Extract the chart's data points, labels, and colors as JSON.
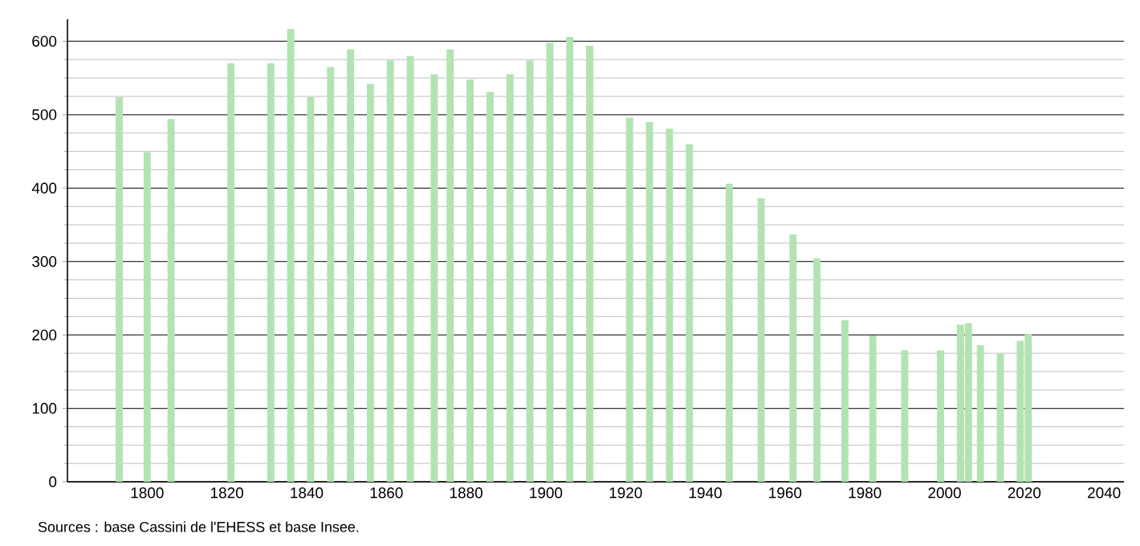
{
  "chart_data": {
    "type": "bar",
    "color": "#b3e3b3",
    "grid": "y",
    "x": [
      1793,
      1800,
      1806,
      1821,
      1831,
      1836,
      1841,
      1846,
      1851,
      1856,
      1861,
      1866,
      1872,
      1876,
      1881,
      1886,
      1891,
      1896,
      1901,
      1906,
      1911,
      1921,
      1926,
      1931,
      1936,
      1946,
      1954,
      1962,
      1968,
      1975,
      1982,
      1990,
      1999,
      2004,
      2006,
      2009,
      2014,
      2019,
      2021
    ],
    "values": [
      524,
      449,
      494,
      570,
      570,
      617,
      524,
      565,
      589,
      542,
      574,
      580,
      555,
      589,
      548,
      531,
      555,
      574,
      598,
      606,
      594,
      496,
      490,
      481,
      460,
      406,
      386,
      337,
      304,
      220,
      199,
      179,
      179,
      214,
      216,
      186,
      175,
      192,
      201
    ],
    "xlim": [
      1780,
      2045
    ],
    "xticks": [
      1800,
      1820,
      1840,
      1860,
      1880,
      1900,
      1920,
      1940,
      1960,
      1980,
      2000,
      2020,
      2040
    ],
    "ylim": [
      0,
      630
    ],
    "yticks": [
      0,
      100,
      200,
      300,
      400,
      500,
      600
    ],
    "annotations": [
      "Sources : base Cassini de l'EHESS et base Insee."
    ]
  }
}
